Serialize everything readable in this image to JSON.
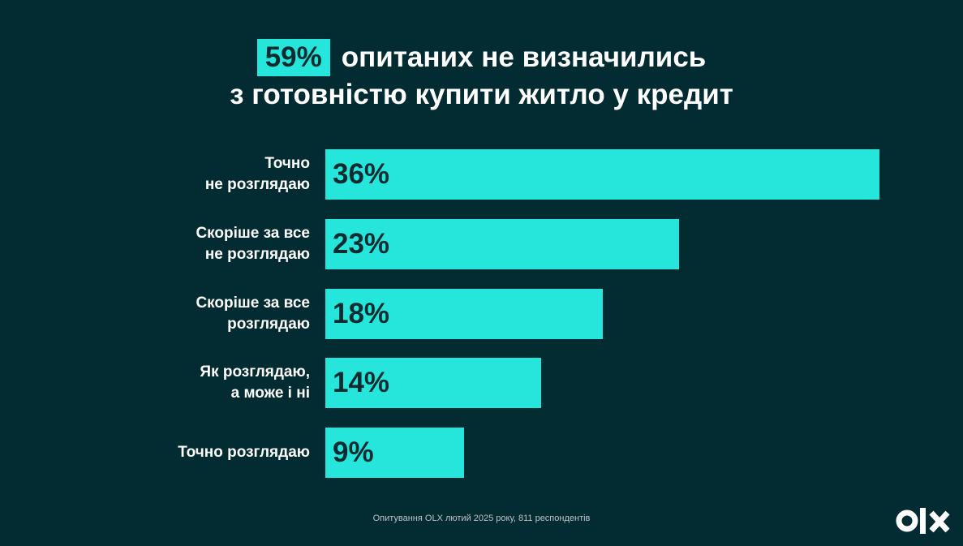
{
  "chart_data": {
    "type": "bar",
    "orientation": "horizontal",
    "title_highlight": "59%",
    "title": "опитаних не визначились\nз готовністю купити житло у кредит",
    "categories": [
      "Точно\nне розглядаю",
      "Скоріше за все\nне розглядаю",
      "Скоріше за все\nрозглядаю",
      "Як розглядаю,\nа може і ні",
      "Точно розглядаю"
    ],
    "values": [
      36,
      23,
      18,
      14,
      9
    ],
    "value_labels": [
      "36%",
      "23%",
      "18%",
      "14%",
      "9%"
    ],
    "color": "#26e6dc",
    "footnote": "Опитування OLX лютий 2025 року, 811 респондентів"
  }
}
